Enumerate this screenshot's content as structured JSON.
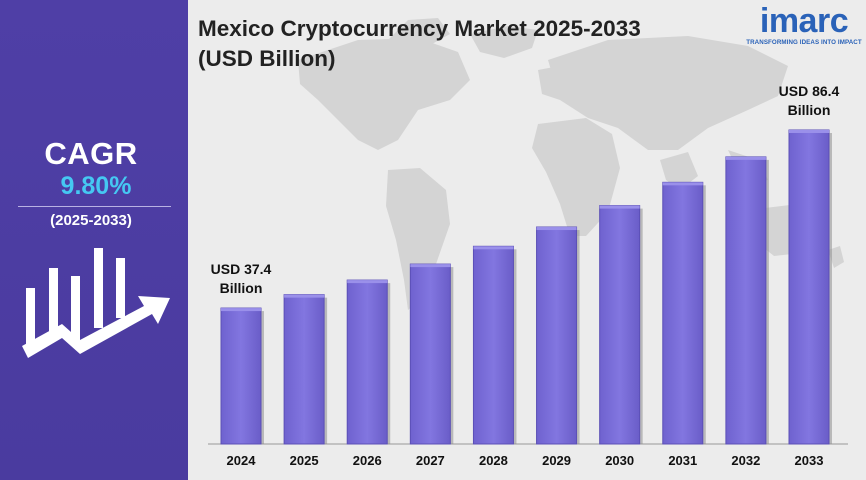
{
  "sidebar": {
    "cagr_label": "CAGR",
    "cagr_value": "9.80%",
    "period": "(2025-2033)",
    "icon": "growth-chart-arrow-icon"
  },
  "header": {
    "title_line1": "Mexico Cryptocurrency Market 2025-2033",
    "title_line2": "(USD Billion)"
  },
  "logo": {
    "word": "imarc",
    "tagline": "TRANSFORMING IDEAS INTO IMPACT"
  },
  "colors": {
    "sidebar": "#4f3fa6",
    "accent": "#45c8f2",
    "bar_fill": "#7b6fd9",
    "bar_top": "#9a90ea",
    "logo": "#2a62b8"
  },
  "chart_data": {
    "type": "bar",
    "title": "Mexico Cryptocurrency Market 2025-2033 (USD Billion)",
    "categories": [
      "2024",
      "2025",
      "2026",
      "2027",
      "2028",
      "2029",
      "2030",
      "2031",
      "2032",
      "2033"
    ],
    "values": [
      37.4,
      41.1,
      45.1,
      49.5,
      54.4,
      59.7,
      65.6,
      72.0,
      79.0,
      86.4
    ],
    "annotations": [
      {
        "category": "2024",
        "line1": "USD 37.4",
        "line2": "Billion"
      },
      {
        "category": "2033",
        "line1": "USD 86.4",
        "line2": "Billion"
      }
    ],
    "xlabel": "",
    "ylabel": "",
    "grid": false,
    "legend": "none"
  }
}
